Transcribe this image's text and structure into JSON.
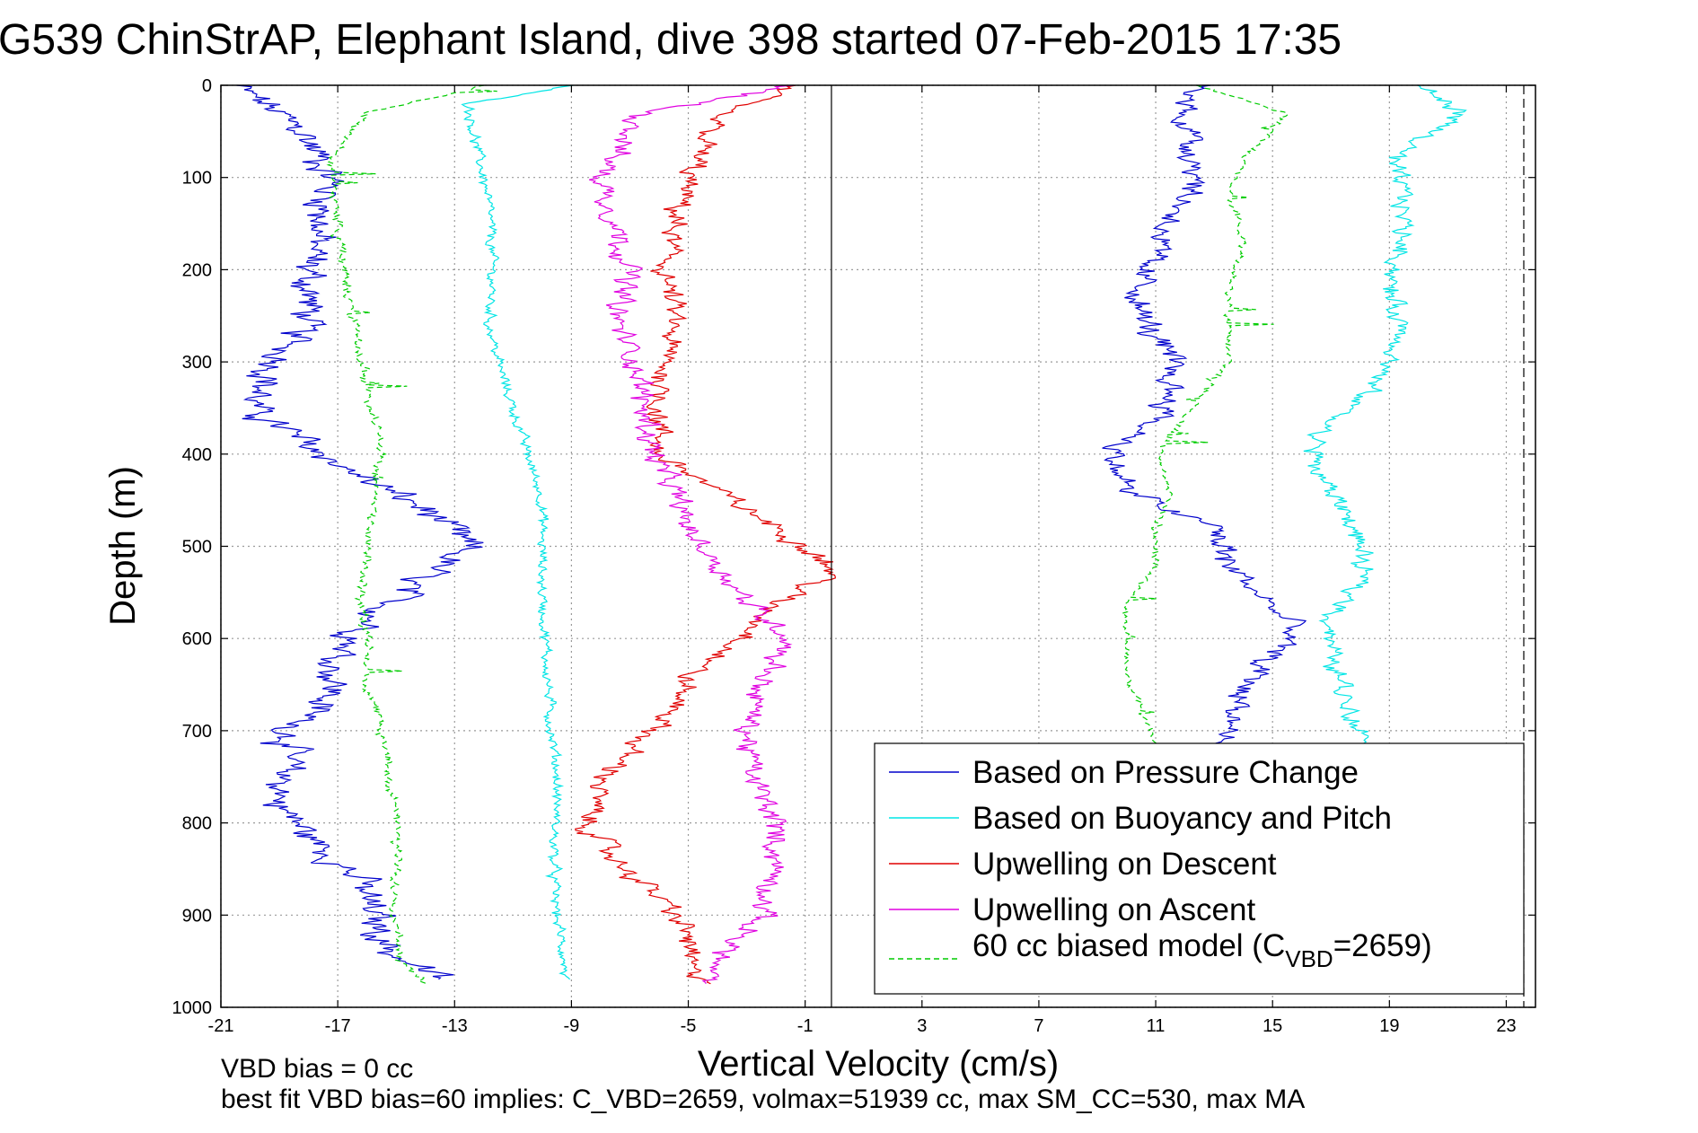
{
  "chart_data": {
    "type": "line",
    "title": "G539 ChinStrAP, Elephant Island, dive 398 started 07-Feb-2015 17:35",
    "xlabel": "Vertical Velocity (cm/s)",
    "ylabel": "Depth (m)",
    "xlim": [
      -21,
      24
    ],
    "ylim": [
      0,
      1000
    ],
    "y_reversed": true,
    "grid": true,
    "legend_position": "bottom-right",
    "x_ticks": [
      "-21",
      "-17",
      "-13",
      "-9",
      "-5",
      "-1",
      "3",
      "7",
      "11",
      "15",
      "19",
      "23"
    ],
    "y_ticks": [
      "0",
      "100",
      "200",
      "300",
      "400",
      "500",
      "600",
      "700",
      "800",
      "900",
      "1000"
    ],
    "zero_line_x": -0.1,
    "model_line_x": 23.6,
    "footer_lines": [
      "VBD bias = 0 cc",
      "best fit VBD bias=60 implies: C_VBD=2659, volmax=51939 cc, max SM_CC=530, max MA"
    ],
    "legend": [
      {
        "label": "Based on Pressure Change",
        "color": "#0000cc",
        "style": "solid"
      },
      {
        "label": "Based on Buoyancy and Pitch",
        "color": "#00e5e5",
        "style": "solid"
      },
      {
        "label": "Upwelling on Descent",
        "color": "#e00000",
        "style": "solid"
      },
      {
        "label": "Upwelling on Ascent",
        "color": "#e000e0",
        "style": "solid"
      },
      {
        "label": "60 cc biased model (C",
        "label_sub": "VBD",
        "label_end": "=2659)",
        "color": "#00cc00",
        "style": "dashed"
      }
    ],
    "series": [
      {
        "name": "Based on Pressure Change",
        "phase": "descent",
        "color": "#0000cc",
        "depth": [
          0,
          20,
          50,
          100,
          150,
          200,
          250,
          300,
          350,
          380,
          420,
          460,
          500,
          540,
          580,
          620,
          660,
          700,
          740,
          780,
          820,
          860,
          900,
          940,
          970
        ],
        "values": [
          -20.5,
          -19.5,
          -18.2,
          -17.2,
          -17.6,
          -18.0,
          -18.0,
          -19.0,
          -20.0,
          -18.5,
          -16.5,
          -14.0,
          -12.5,
          -14.5,
          -15.8,
          -17.0,
          -17.2,
          -18.6,
          -18.8,
          -19.0,
          -17.8,
          -16.3,
          -15.8,
          -15.2,
          -13.5
        ],
        "noise": 0.9
      },
      {
        "name": "Based on Buoyancy and Pitch",
        "phase": "descent",
        "color": "#00e5e5",
        "depth": [
          0,
          20,
          60,
          100,
          140,
          200,
          260,
          300,
          350,
          400,
          450,
          500,
          550,
          600,
          650,
          700,
          740,
          780,
          820,
          860,
          900,
          940,
          970
        ],
        "values": [
          -9.0,
          -12.5,
          -12.3,
          -12.0,
          -11.8,
          -11.7,
          -11.8,
          -11.5,
          -11.0,
          -10.5,
          -10.0,
          -10.0,
          -10.0,
          -9.9,
          -9.8,
          -9.7,
          -9.5,
          -9.5,
          -9.6,
          -9.6,
          -9.5,
          -9.3,
          -9.2
        ],
        "noise": 0.25
      },
      {
        "name": "Upwelling on Descent",
        "phase": "descent",
        "color": "#e00000",
        "depth": [
          0,
          30,
          100,
          150,
          200,
          250,
          300,
          350,
          400,
          440,
          480,
          510,
          530,
          560,
          600,
          640,
          680,
          720,
          760,
          800,
          840,
          880,
          920,
          960,
          975
        ],
        "values": [
          -1.5,
          -4.0,
          -5.0,
          -5.5,
          -5.8,
          -5.5,
          -5.8,
          -6.0,
          -6.0,
          -4.0,
          -2.0,
          -0.5,
          0.0,
          -2.0,
          -3.0,
          -5.0,
          -5.5,
          -7.0,
          -8.0,
          -8.5,
          -7.5,
          -6.0,
          -5.0,
          -5.0,
          -4.0
        ],
        "noise": 0.6
      },
      {
        "name": "Upwelling on Ascent",
        "phase": "ascent",
        "color": "#e000e0",
        "depth": [
          0,
          30,
          100,
          150,
          200,
          250,
          300,
          350,
          400,
          440,
          480,
          520,
          560,
          600,
          650,
          700,
          750,
          800,
          850,
          900,
          950,
          975
        ],
        "values": [
          -1.5,
          -6.5,
          -8.0,
          -7.5,
          -7.0,
          -7.5,
          -6.8,
          -6.5,
          -6.2,
          -5.5,
          -5.0,
          -4.0,
          -3.0,
          -1.5,
          -2.5,
          -3.0,
          -2.8,
          -2.0,
          -2.0,
          -2.5,
          -4.0,
          -4.5
        ],
        "noise": 0.6
      },
      {
        "name": "60 cc biased model",
        "phase": "descent",
        "color": "#00cc00",
        "dashed": true,
        "depth": [
          0,
          30,
          80,
          150,
          200,
          250,
          300,
          350,
          400,
          450,
          500,
          550,
          600,
          650,
          700,
          750,
          800,
          850,
          900,
          950,
          975
        ],
        "values": [
          -12.0,
          -16.0,
          -17.2,
          -17.0,
          -16.8,
          -16.5,
          -16.2,
          -15.8,
          -15.5,
          -15.8,
          -16.0,
          -16.2,
          -16.0,
          -16.0,
          -15.5,
          -15.2,
          -15.0,
          -15.0,
          -15.0,
          -14.8,
          -14.0
        ],
        "noise": 0.25
      },
      {
        "name": "Based on Pressure Change",
        "phase": "ascent",
        "color": "#0000cc",
        "depth": [
          0,
          20,
          60,
          100,
          150,
          200,
          250,
          300,
          350,
          400,
          440,
          480,
          520,
          560,
          590,
          620,
          660,
          700,
          715
        ],
        "values": [
          12.5,
          12.0,
          12.2,
          12.5,
          11.5,
          10.5,
          10.5,
          11.5,
          11.5,
          9.5,
          10.0,
          13.0,
          13.5,
          14.8,
          15.8,
          14.8,
          14.0,
          13.5,
          13.0
        ],
        "noise": 0.7
      },
      {
        "name": "Based on Buoyancy and Pitch",
        "phase": "ascent",
        "color": "#00e5e5",
        "depth": [
          0,
          30,
          80,
          120,
          170,
          220,
          270,
          300,
          340,
          380,
          420,
          460,
          500,
          540,
          580,
          620,
          660,
          700,
          715
        ],
        "values": [
          20.0,
          21.5,
          19.0,
          19.5,
          19.5,
          19.0,
          19.5,
          19.0,
          18.0,
          16.5,
          16.5,
          17.5,
          18.0,
          18.0,
          17.0,
          17.0,
          17.5,
          18.0,
          18.5
        ],
        "noise": 0.5
      },
      {
        "name": "60 cc biased model",
        "phase": "ascent",
        "color": "#00cc00",
        "dashed": true,
        "depth": [
          0,
          30,
          80,
          120,
          170,
          220,
          260,
          300,
          340,
          400,
          440,
          480,
          520,
          560,
          600,
          640,
          680,
          715
        ],
        "values": [
          12.5,
          15.5,
          14.0,
          13.5,
          14.0,
          13.5,
          13.5,
          13.5,
          12.5,
          11.0,
          11.5,
          11.0,
          11.0,
          10.0,
          10.0,
          10.0,
          10.5,
          11.0
        ],
        "noise": 0.2
      }
    ]
  }
}
